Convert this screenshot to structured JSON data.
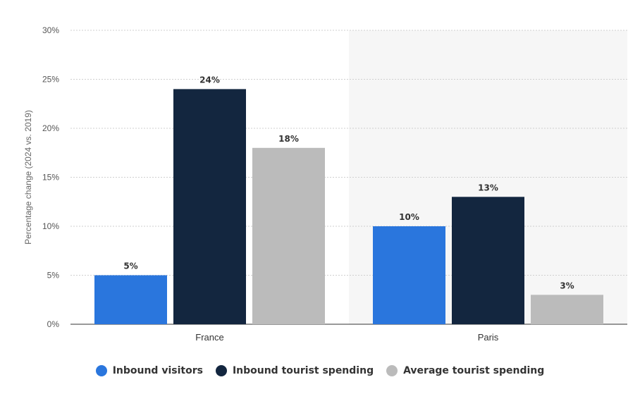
{
  "chart_data": {
    "type": "bar",
    "categories": [
      "France",
      "Paris"
    ],
    "series": [
      {
        "name": "Inbound visitors",
        "values": [
          5,
          10
        ],
        "labels": [
          "5%",
          "10%"
        ],
        "color": "#2a76dd"
      },
      {
        "name": "Inbound tourist spending",
        "values": [
          24,
          13
        ],
        "labels": [
          "24%",
          "13%"
        ],
        "color": "#13263f"
      },
      {
        "name": "Average tourist spending",
        "values": [
          18,
          3
        ],
        "labels": [
          "18%",
          "3%"
        ],
        "color": "#bbbbbb"
      }
    ],
    "ylabel": "Percentage change (2024 vs. 2019)",
    "ylim": [
      0,
      30
    ],
    "yticks": [
      {
        "value": 0,
        "label": "0%"
      },
      {
        "value": 5,
        "label": "5%"
      },
      {
        "value": 10,
        "label": "10%"
      },
      {
        "value": 15,
        "label": "15%"
      },
      {
        "value": 20,
        "label": "20%"
      },
      {
        "value": 25,
        "label": "25%"
      },
      {
        "value": 30,
        "label": "30%"
      }
    ],
    "grid": true,
    "highlighted_category": "Paris",
    "highlight_color": "#f6f6f6",
    "legend_position": "bottom"
  }
}
